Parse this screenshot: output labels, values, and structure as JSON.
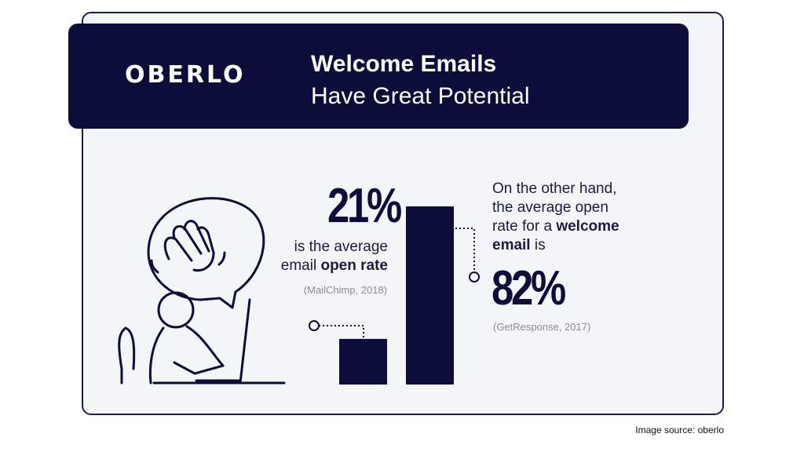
{
  "header": {
    "brand": "OBERLO",
    "title_line1": "Welcome Emails",
    "title_line2": "Have Great Potential"
  },
  "chart_data": {
    "type": "bar",
    "categories": [
      "Average email open rate",
      "Average welcome email open rate"
    ],
    "values": [
      21,
      82
    ],
    "ylim": [
      0,
      90
    ],
    "title": "Welcome Emails Have Great Potential",
    "xlabel": "",
    "ylabel": ""
  },
  "left_stat": {
    "value": "21%",
    "line1": "is the average",
    "line2_prefix": "email ",
    "line2_bold": "open rate",
    "source": "(MailChimp, 2018)"
  },
  "right_stat": {
    "line1": "On the other hand,",
    "line2": "the average open",
    "line3_prefix": "rate for a ",
    "line3_bold": "welcome",
    "line4_bold": "email",
    "line4_suffix": " is",
    "value": "82%",
    "source": "(GetResponse, 2017)"
  },
  "footer": {
    "text": "Image source: oberlo"
  },
  "colors": {
    "navy": "#0d0d39",
    "card_bg": "#f3f6f9"
  }
}
